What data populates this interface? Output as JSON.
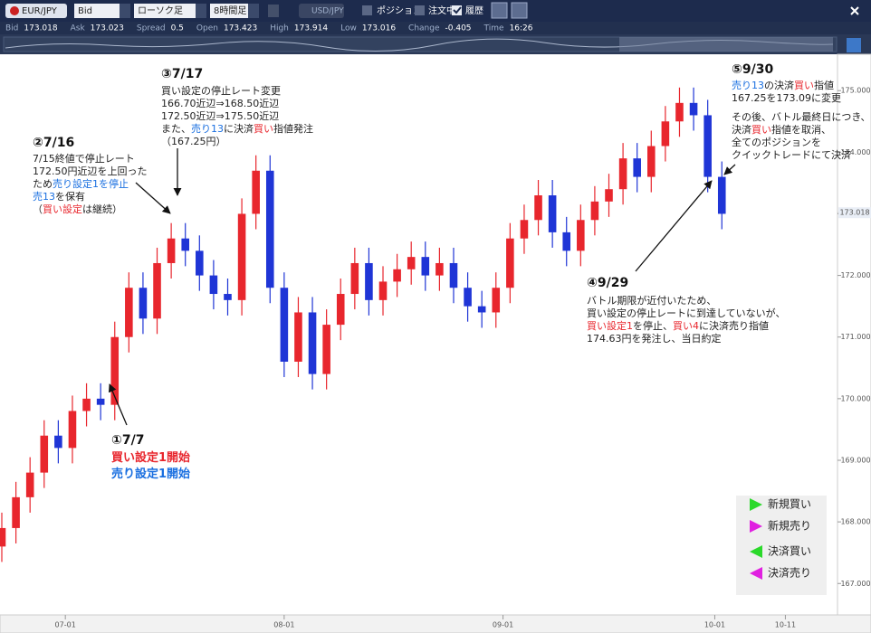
{
  "toolbar": {
    "symbol": "EUR/JPY",
    "price_side": "Bid",
    "chart_kind": "ローソク足",
    "timeframe": "8時間足",
    "compare_symbol": "USD/JPY",
    "toggles": [
      "ポジション",
      "注文中",
      "履歴"
    ]
  },
  "quote": {
    "labels": [
      "Bid",
      "Ask",
      "Spread",
      "Open",
      "High",
      "Low",
      "Change",
      "Time"
    ],
    "values": [
      173.018,
      173.023,
      0.5,
      173.423,
      173.914,
      173.016,
      -0.405,
      "16:26"
    ]
  },
  "chart_data": {
    "type": "candlestick",
    "x": [
      -9,
      -7,
      -5,
      -3,
      -1,
      1,
      3,
      5,
      7,
      9,
      11,
      13,
      15,
      17,
      19,
      21,
      23,
      25,
      27,
      29,
      31,
      33,
      35,
      37,
      39,
      41,
      43,
      45,
      47,
      49,
      51,
      53,
      55,
      57,
      59,
      61,
      63,
      65,
      67,
      69,
      71,
      73,
      75,
      77,
      79,
      81,
      83,
      85,
      87,
      89,
      91,
      93
    ],
    "open": [
      167.6,
      167.9,
      168.4,
      168.8,
      169.4,
      169.2,
      169.8,
      170.0,
      169.9,
      171.0,
      171.8,
      171.3,
      172.2,
      172.6,
      172.4,
      172.0,
      171.7,
      171.6,
      173.0,
      173.7,
      171.8,
      170.6,
      171.4,
      170.4,
      171.2,
      171.7,
      172.2,
      171.6,
      171.9,
      172.1,
      172.3,
      172.0,
      172.2,
      171.8,
      171.5,
      171.4,
      171.8,
      172.6,
      172.9,
      173.3,
      172.7,
      172.4,
      172.9,
      173.2,
      173.4,
      173.9,
      173.6,
      174.1,
      174.5,
      174.8,
      174.6,
      173.6
    ],
    "high": [
      168.15,
      168.65,
      169.05,
      169.65,
      169.65,
      170.05,
      170.25,
      170.25,
      171.25,
      172.05,
      172.05,
      172.45,
      172.85,
      172.85,
      172.65,
      172.25,
      171.95,
      173.25,
      173.95,
      173.95,
      172.05,
      171.65,
      171.65,
      171.45,
      171.95,
      172.45,
      172.45,
      172.15,
      172.35,
      172.55,
      172.55,
      172.45,
      172.45,
      172.05,
      171.75,
      172.05,
      172.85,
      173.15,
      173.55,
      173.55,
      172.95,
      173.15,
      173.45,
      173.65,
      174.15,
      174.15,
      174.35,
      174.75,
      175.05,
      175.05,
      174.85,
      173.85
    ],
    "low": [
      167.35,
      167.65,
      168.15,
      168.55,
      168.95,
      168.95,
      169.55,
      169.65,
      169.65,
      170.75,
      171.05,
      171.05,
      171.95,
      172.15,
      171.75,
      171.45,
      171.35,
      171.35,
      172.75,
      171.55,
      170.35,
      170.35,
      170.15,
      170.15,
      170.95,
      171.45,
      171.35,
      171.35,
      171.65,
      171.85,
      171.75,
      171.75,
      171.55,
      171.25,
      171.15,
      171.15,
      171.55,
      172.35,
      172.65,
      172.45,
      172.15,
      172.15,
      172.65,
      172.95,
      173.15,
      173.35,
      173.35,
      173.85,
      174.25,
      174.35,
      173.35,
      172.75
    ],
    "close": [
      167.9,
      168.4,
      168.8,
      169.4,
      169.2,
      169.8,
      170.0,
      169.9,
      171.0,
      171.8,
      171.3,
      172.2,
      172.6,
      172.4,
      172.0,
      171.7,
      171.6,
      173.0,
      173.7,
      171.8,
      170.6,
      171.4,
      170.4,
      171.2,
      171.7,
      172.2,
      171.6,
      171.9,
      172.1,
      172.3,
      172.0,
      172.2,
      171.8,
      171.5,
      171.4,
      171.8,
      172.6,
      172.9,
      173.3,
      172.7,
      172.4,
      172.9,
      173.2,
      173.4,
      173.9,
      173.6,
      174.1,
      174.5,
      174.8,
      174.6,
      173.6,
      173.0
    ],
    "up_color": "#e8262d",
    "down_color": "#1f35d6",
    "xlim": [
      -9,
      109
    ],
    "xticks": [
      {
        "value": 0,
        "label": "07-01"
      },
      {
        "value": 31,
        "label": "08-01"
      },
      {
        "value": 62,
        "label": "09-01"
      },
      {
        "value": 92,
        "label": "10-01"
      },
      {
        "value": 102,
        "label": "10-11"
      }
    ],
    "ylim": [
      166.49,
      175.59
    ],
    "yticks": [
      {
        "value": 167,
        "label": "167.000"
      },
      {
        "value": 168,
        "label": "168.000"
      },
      {
        "value": 169,
        "label": "169.000"
      },
      {
        "value": 170,
        "label": "170.000"
      },
      {
        "value": 171,
        "label": "171.000"
      },
      {
        "value": 172,
        "label": "172.000"
      },
      {
        "value": 173,
        "label": "173.000"
      },
      {
        "value": 174,
        "label": "174.000"
      },
      {
        "value": 175,
        "label": "175.000"
      }
    ],
    "last_price": 173.018,
    "annotations": [
      {
        "title": "③7/17",
        "lines": [
          [
            {
              "text": "買い設定の停止レート変更"
            }
          ],
          [
            {
              "text": "166.70近辺⇒168.50近辺"
            }
          ],
          [
            {
              "text": "172.50近辺⇒175.50近辺"
            }
          ],
          [
            {
              "text": "また、"
            },
            {
              "text": "売り13",
              "color": "#1a6fe0"
            },
            {
              "text": "に決済"
            },
            {
              "text": "買い",
              "color": "#e8262d"
            },
            {
              "text": "指値発注"
            }
          ],
          [
            {
              "text": "（167.25円）"
            }
          ]
        ]
      },
      {
        "title": "②7/16",
        "lines": [
          [
            {
              "text": "7/15終値で停止レート"
            }
          ],
          [
            {
              "text": "172.50円近辺を上回った"
            }
          ],
          [
            {
              "text": "ため"
            },
            {
              "text": "売り設定1を停止",
              "color": "#1a6fe0"
            }
          ],
          [
            {
              "text": "売13",
              "color": "#1a6fe0"
            },
            {
              "text": "を保有"
            }
          ],
          [
            {
              "text": "（"
            },
            {
              "text": "買い設定",
              "color": "#e8262d"
            },
            {
              "text": "は継続）"
            }
          ]
        ]
      },
      {
        "title": "①7/7",
        "lines": [
          [
            {
              "text": "買い設定1開始",
              "color": "#e8262d"
            }
          ],
          [
            {
              "text": "売り設定1開始",
              "color": "#1a6fe0"
            }
          ]
        ]
      },
      {
        "title": "④9/29",
        "lines": [
          [
            {
              "text": "バトル期限が近付いたため、"
            }
          ],
          [
            {
              "text": "買い設定の停止レートに到達していないが、"
            }
          ],
          [
            {
              "text": "買い設定1",
              "color": "#e8262d"
            },
            {
              "text": "を停止、"
            },
            {
              "text": "買い4",
              "color": "#e8262d"
            },
            {
              "text": "に決済売り指値"
            }
          ],
          [
            {
              "text": "174.63円を発注し、当日約定"
            }
          ]
        ]
      },
      {
        "title": "⑤9/30",
        "lines": [
          [
            {
              "text": "売り13",
              "color": "#1a6fe0"
            },
            {
              "text": "の決済"
            },
            {
              "text": "買い",
              "color": "#e8262d"
            },
            {
              "text": "指値"
            }
          ],
          [
            {
              "text": "167.25を173.09に変更"
            }
          ]
        ]
      },
      {
        "lines": [
          [
            {
              "text": "その後、バトル最終日につき、"
            }
          ],
          [
            {
              "text": "決済"
            },
            {
              "text": "買い",
              "color": "#e8262d"
            },
            {
              "text": "指値を取消、"
            }
          ],
          [
            {
              "text": "全てのポジションを"
            }
          ],
          [
            {
              "text": "クイックトレードにて決済"
            }
          ]
        ]
      }
    ],
    "legend": [
      {
        "name": "新規買い",
        "color": "#2bd92b"
      },
      {
        "name": "新規売り",
        "color": "#e020e0"
      },
      {
        "name": "決済買い",
        "color": "#2bd92b"
      },
      {
        "name": "決済売り",
        "color": "#e020e0"
      }
    ]
  }
}
